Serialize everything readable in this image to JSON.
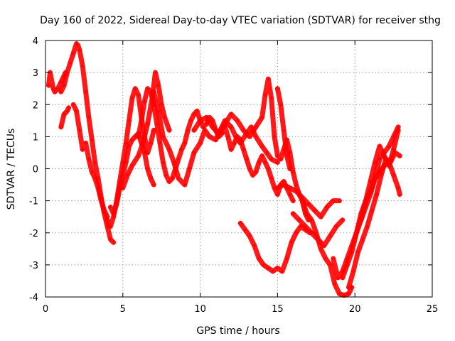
{
  "chart_data": {
    "type": "scatter",
    "title": "Day 160 of 2022, Sidereal Day-to-day VTEC variation (SDTVAR) for receiver sthg",
    "xlabel": "GPS time / hours",
    "ylabel": "SDTVAR / TECUs",
    "xlim": [
      0,
      25
    ],
    "ylim": [
      -4,
      4
    ],
    "xticks": [
      0,
      5,
      10,
      15,
      20,
      25
    ],
    "yticks": [
      -4,
      -3,
      -2,
      -1,
      0,
      1,
      2,
      3,
      4
    ],
    "grid": true,
    "marker": "plus",
    "color": "#ff0000",
    "series": [
      {
        "x": [
          0.2,
          0.3,
          0.5,
          0.6,
          0.8,
          1.0,
          1.2,
          1.3
        ],
        "y": [
          2.6,
          3.0,
          2.5,
          2.4,
          2.5,
          2.7,
          2.9,
          3.0
        ]
      },
      {
        "x": [
          1.0,
          1.2,
          1.4,
          1.6,
          1.8,
          2.0,
          2.1,
          2.2,
          2.4,
          2.6,
          2.8,
          3.0,
          3.2,
          3.4,
          3.6,
          3.8,
          4.0,
          4.2,
          4.4
        ],
        "y": [
          2.4,
          2.6,
          3.0,
          3.3,
          3.6,
          3.9,
          3.85,
          3.7,
          3.2,
          2.4,
          1.6,
          0.9,
          0.2,
          -0.3,
          -0.9,
          -1.4,
          -1.8,
          -2.2,
          -2.3
        ]
      },
      {
        "x": [
          1.0,
          1.2,
          1.4,
          1.5
        ],
        "y": [
          1.3,
          1.7,
          1.8,
          1.9
        ]
      },
      {
        "x": [
          1.8,
          2.0,
          2.2,
          2.4,
          2.6,
          2.8,
          3.0,
          3.2,
          3.4,
          3.6,
          3.8,
          4.0
        ],
        "y": [
          2.0,
          1.8,
          1.2,
          0.6,
          0.8,
          0.3,
          -0.1,
          -0.3,
          -0.6,
          -1.0,
          -1.3,
          -1.5
        ]
      },
      {
        "x": [
          4.0,
          4.2,
          4.4,
          4.6,
          4.8,
          5.0,
          5.2,
          5.4,
          5.6,
          5.8,
          6.0,
          6.2,
          6.4,
          6.6,
          6.8,
          7.0
        ],
        "y": [
          -1.6,
          -1.8,
          -1.5,
          -1.0,
          -0.4,
          0.2,
          0.8,
          1.5,
          2.2,
          2.5,
          2.3,
          1.6,
          1.0,
          0.5,
          0.8,
          1.2
        ]
      },
      {
        "x": [
          4.2,
          4.4,
          4.6,
          4.8,
          5.0,
          5.2,
          5.4,
          5.6,
          5.8,
          6.0,
          6.2,
          6.4,
          6.6,
          6.8,
          7.0
        ],
        "y": [
          -1.2,
          -1.4,
          -1.1,
          -0.6,
          -0.2,
          0.2,
          0.7,
          0.9,
          1.0,
          1.1,
          0.8,
          0.5,
          0.0,
          -0.3,
          -0.5
        ]
      },
      {
        "x": [
          5.0,
          5.3,
          5.6,
          6.0,
          6.3,
          6.6,
          6.9,
          7.1,
          7.3,
          7.5,
          7.7,
          8.0
        ],
        "y": [
          -0.6,
          -0.2,
          0.1,
          0.4,
          0.8,
          1.4,
          2.2,
          3.0,
          2.6,
          2.0,
          1.6,
          1.2
        ]
      },
      {
        "x": [
          6.0,
          6.2,
          6.4,
          6.6,
          6.8,
          7.0,
          7.2,
          7.4,
          7.6,
          7.8,
          8.0,
          8.2,
          8.4,
          8.6,
          8.8,
          9.0,
          9.2,
          9.4,
          9.6,
          9.8,
          10.0,
          10.2,
          10.4,
          10.6,
          10.8,
          11.0,
          11.2,
          11.4,
          11.6,
          11.8,
          12.0,
          12.2,
          12.4,
          12.6,
          12.8,
          13.0,
          13.2,
          13.4,
          13.6,
          13.8,
          14.0,
          14.2,
          14.4,
          14.6,
          14.8,
          15.0,
          15.2,
          15.4,
          15.6,
          15.8,
          16.0
        ],
        "y": [
          1.0,
          1.5,
          2.1,
          2.5,
          2.4,
          2.0,
          1.4,
          0.8,
          0.2,
          -0.2,
          -0.4,
          -0.3,
          0.0,
          0.3,
          0.6,
          0.8,
          1.2,
          1.5,
          1.7,
          1.8,
          1.5,
          1.3,
          1.4,
          1.6,
          1.5,
          1.2,
          1.0,
          1.1,
          1.3,
          1.0,
          0.6,
          0.8,
          1.0,
          0.9,
          0.6,
          0.3,
          0.0,
          -0.2,
          -0.1,
          0.2,
          0.4,
          0.2,
          0.0,
          -0.3,
          -0.6,
          -0.8,
          -0.5,
          -0.4,
          -0.6,
          -0.8,
          -1.0
        ]
      },
      {
        "x": [
          7.0,
          7.3,
          7.6,
          8.0,
          8.3,
          8.6,
          9.0,
          9.3,
          9.6,
          10.0,
          10.3,
          10.6,
          11.0,
          11.3,
          11.6,
          12.0,
          12.3,
          12.6,
          13.0,
          13.3,
          13.6,
          14.0,
          14.3,
          14.6,
          15.0
        ],
        "y": [
          2.4,
          1.8,
          1.0,
          0.6,
          0.2,
          -0.3,
          -0.5,
          0.0,
          0.5,
          0.8,
          1.2,
          1.0,
          0.9,
          1.2,
          1.5,
          1.3,
          1.0,
          0.8,
          1.1,
          1.3,
          1.0,
          0.7,
          0.5,
          0.3,
          0.2
        ]
      },
      {
        "x": [
          9.6,
          10.0,
          10.4,
          10.8,
          11.2,
          11.6,
          12.0,
          12.4,
          12.8,
          13.2,
          13.6,
          14.0,
          14.2,
          14.4,
          14.6,
          14.8,
          15.0,
          15.2,
          15.4,
          15.6,
          15.8,
          16.0,
          16.2,
          16.4,
          16.6,
          16.8,
          17.0
        ],
        "y": [
          1.2,
          1.5,
          1.6,
          1.3,
          1.1,
          1.4,
          1.7,
          1.5,
          1.2,
          1.0,
          1.3,
          1.6,
          2.3,
          2.8,
          2.2,
          1.0,
          0.4,
          0.3,
          0.6,
          0.9,
          0.5,
          -0.1,
          -0.5,
          -0.8,
          -1.0,
          -1.4,
          -1.6
        ]
      },
      {
        "x": [
          15.0,
          15.2,
          15.4,
          15.6,
          15.8
        ],
        "y": [
          2.5,
          2.0,
          1.2,
          0.4,
          0.0
        ]
      },
      {
        "x": [
          12.6,
          12.9,
          13.2,
          13.5,
          13.8,
          14.1,
          14.4,
          14.7,
          15.0,
          15.3,
          15.6,
          15.9,
          16.2,
          16.5,
          16.8,
          17.1
        ],
        "y": [
          -1.7,
          -1.9,
          -2.1,
          -2.4,
          -2.8,
          -3.0,
          -3.1,
          -3.2,
          -3.1,
          -3.2,
          -2.8,
          -2.3,
          -2.0,
          -1.8,
          -1.9,
          -2.0
        ]
      },
      {
        "x": [
          15.0,
          15.4,
          15.8,
          16.2,
          16.6,
          17.0,
          17.4,
          17.8,
          18.2,
          18.6,
          19.0
        ],
        "y": [
          -0.6,
          -0.5,
          -0.6,
          -0.7,
          -0.9,
          -1.1,
          -1.3,
          -1.5,
          -1.2,
          -1.0,
          -1.0
        ]
      },
      {
        "x": [
          16.0,
          16.4,
          16.8,
          17.2,
          17.6,
          18.0,
          18.4,
          18.8,
          19.2
        ],
        "y": [
          -1.4,
          -1.6,
          -1.8,
          -2.0,
          -2.2,
          -2.4,
          -2.1,
          -1.8,
          -1.6
        ]
      },
      {
        "x": [
          16.6,
          16.9,
          17.2,
          17.5,
          17.8,
          18.1,
          18.4,
          18.7,
          19.0,
          19.3,
          19.6,
          19.8
        ],
        "y": [
          -1.0,
          -1.4,
          -1.6,
          -2.0,
          -2.5,
          -2.8,
          -3.0,
          -3.6,
          -3.9,
          -3.95,
          -3.9,
          -3.7
        ]
      },
      {
        "x": [
          18.6,
          18.9,
          19.2,
          19.5,
          19.8,
          20.1,
          20.4,
          20.7,
          21.0,
          21.3,
          21.6,
          21.9,
          22.2,
          22.5,
          22.8
        ],
        "y": [
          -2.8,
          -3.4,
          -3.2,
          -2.8,
          -2.4,
          -2.0,
          -1.6,
          -1.2,
          -0.8,
          -0.3,
          0.3,
          0.5,
          0.7,
          1.0,
          1.3
        ]
      },
      {
        "x": [
          19.6,
          19.9,
          20.2,
          20.5,
          20.8,
          21.1,
          21.4,
          21.7,
          22.0,
          22.3,
          22.6,
          22.9
        ],
        "y": [
          -3.7,
          -3.2,
          -2.6,
          -2.2,
          -1.8,
          -1.3,
          -0.8,
          -0.2,
          0.3,
          0.2,
          0.5,
          0.4
        ]
      },
      {
        "x": [
          19.2,
          19.5,
          19.8,
          20.1,
          20.4,
          20.7,
          21.0,
          21.3,
          21.6,
          21.9,
          22.2,
          22.5,
          22.8,
          22.9
        ],
        "y": [
          -3.4,
          -3.0,
          -2.6,
          -2.0,
          -1.4,
          -1.0,
          -0.7,
          -0.3,
          -0.1,
          0.1,
          0.2,
          -0.2,
          -0.6,
          -0.8
        ]
      },
      {
        "x": [
          20.4,
          20.7,
          21.0,
          21.3,
          21.6,
          21.9,
          22.2,
          22.5,
          22.8
        ],
        "y": [
          -1.6,
          -1.0,
          -0.4,
          0.2,
          0.7,
          0.4,
          0.1,
          0.6,
          1.2
        ]
      }
    ]
  }
}
